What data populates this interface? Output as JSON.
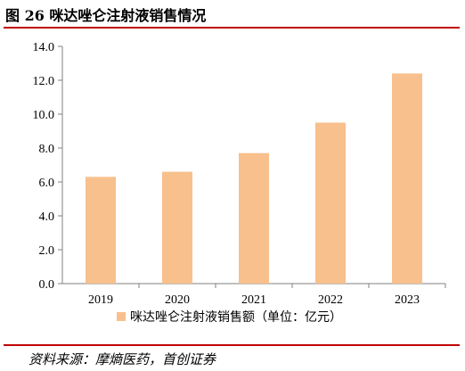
{
  "figure": {
    "title": "图 26  咪达唑仑注射液销售情况",
    "source": "资料来源：摩熵医药，首创证券"
  },
  "chart_data": {
    "type": "bar",
    "categories": [
      "2019",
      "2020",
      "2021",
      "2022",
      "2023"
    ],
    "series": [
      {
        "name": "咪达唑仑注射液销售额（单位：亿元）",
        "values": [
          6.3,
          6.6,
          7.7,
          9.5,
          12.4
        ]
      }
    ],
    "ylim": [
      0,
      14
    ],
    "ytick_step": 2,
    "ytick_labels": [
      "0.0",
      "2.0",
      "4.0",
      "6.0",
      "8.0",
      "10.0",
      "12.0",
      "14.0"
    ],
    "grid": false,
    "legend_position": "bottom",
    "colors": {
      "bar": "#F8C08C",
      "axis": "#808080",
      "rule": "#C00000"
    }
  }
}
